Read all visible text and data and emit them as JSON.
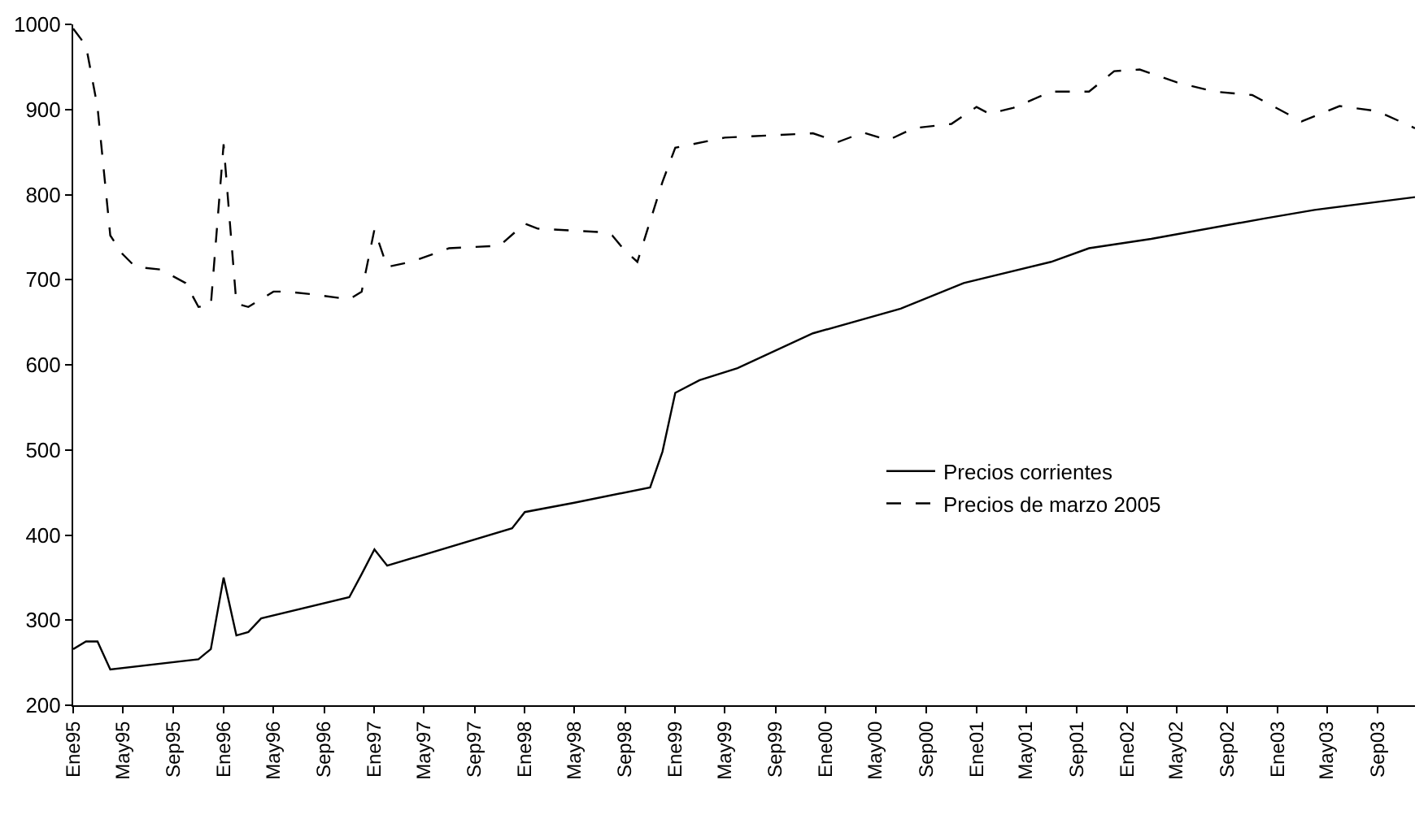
{
  "chart_data": {
    "type": "line",
    "xlim": [
      "1995-01",
      "2003-12"
    ],
    "ylim": [
      200,
      1000
    ],
    "yticks": [
      200,
      300,
      400,
      500,
      600,
      700,
      800,
      900,
      1000
    ],
    "xticks": [
      {
        "value": "1995-01",
        "label": "Ene95"
      },
      {
        "value": "1995-05",
        "label": "May95"
      },
      {
        "value": "1995-09",
        "label": "Sep95"
      },
      {
        "value": "1996-01",
        "label": "Ene96"
      },
      {
        "value": "1996-05",
        "label": "May96"
      },
      {
        "value": "1996-09",
        "label": "Sep96"
      },
      {
        "value": "1997-01",
        "label": "Ene97"
      },
      {
        "value": "1997-05",
        "label": "May97"
      },
      {
        "value": "1997-09",
        "label": "Sep97"
      },
      {
        "value": "1998-01",
        "label": "Ene98"
      },
      {
        "value": "1998-05",
        "label": "May98"
      },
      {
        "value": "1998-09",
        "label": "Sep98"
      },
      {
        "value": "1999-01",
        "label": "Ene99"
      },
      {
        "value": "1999-05",
        "label": "May99"
      },
      {
        "value": "1999-09",
        "label": "Sep99"
      },
      {
        "value": "2000-01",
        "label": "Ene00"
      },
      {
        "value": "2000-05",
        "label": "May00"
      },
      {
        "value": "2000-09",
        "label": "Sep00"
      },
      {
        "value": "2001-01",
        "label": "Ene01"
      },
      {
        "value": "2001-05",
        "label": "May01"
      },
      {
        "value": "2001-09",
        "label": "Sep01"
      },
      {
        "value": "2002-01",
        "label": "Ene02"
      },
      {
        "value": "2002-05",
        "label": "May02"
      },
      {
        "value": "2002-09",
        "label": "Sep02"
      },
      {
        "value": "2003-01",
        "label": "Ene03"
      },
      {
        "value": "2003-05",
        "label": "May03"
      },
      {
        "value": "2003-09",
        "label": "Sep03"
      }
    ],
    "legend": "right",
    "marker": "none",
    "series": [
      {
        "name": "Precios corrientes",
        "color": "#000000",
        "line_style": "solid",
        "x": [
          "1995-01",
          "1995-02",
          "1995-03",
          "1995-04",
          "1995-11",
          "1995-12",
          "1996-01",
          "1996-02",
          "1996-03",
          "1996-04",
          "1996-11",
          "1996-12",
          "1997-01",
          "1997-02",
          "1997-12",
          "1998-01",
          "1998-05",
          "1998-11",
          "1998-12",
          "1999-01",
          "1999-03",
          "1999-06",
          "1999-12",
          "2000-07",
          "2000-12",
          "2001-07",
          "2001-10",
          "2002-03",
          "2002-12",
          "2003-04",
          "2003-12"
        ],
        "values": [
          266,
          275,
          275,
          242,
          254,
          266,
          350,
          282,
          286,
          302,
          327,
          354,
          383,
          364,
          408,
          427,
          438,
          456,
          498,
          567,
          582,
          596,
          637,
          666,
          696,
          721,
          737,
          748,
          772,
          782,
          797
        ]
      },
      {
        "name": "Precios de marzo 2005",
        "color": "#000000",
        "line_style": "dashed",
        "x": [
          "1995-01",
          "1995-02",
          "1995-03",
          "1995-04",
          "1995-05",
          "1995-06",
          "1995-08",
          "1995-10",
          "1995-11",
          "1995-12",
          "1996-01",
          "1996-02",
          "1996-03",
          "1996-05",
          "1996-06",
          "1996-08",
          "1996-11",
          "1996-12",
          "1997-01",
          "1997-02",
          "1997-04",
          "1997-07",
          "1997-11",
          "1998-01",
          "1998-02",
          "1998-07",
          "1998-08",
          "1998-09",
          "1998-10",
          "1998-12",
          "1999-01",
          "1999-05",
          "1999-12",
          "2000-02",
          "2000-04",
          "2000-06",
          "2000-08",
          "2000-11",
          "2001-01",
          "2001-02",
          "2001-04",
          "2001-07",
          "2001-10",
          "2001-12",
          "2002-02",
          "2002-05",
          "2002-08",
          "2002-11",
          "2003-03",
          "2003-06",
          "2003-09",
          "2003-12"
        ],
        "values": [
          995,
          975,
          903,
          752,
          730,
          715,
          712,
          696,
          668,
          670,
          859,
          672,
          668,
          686,
          686,
          683,
          677,
          686,
          759,
          715,
          721,
          737,
          740,
          766,
          760,
          756,
          752,
          734,
          721,
          815,
          855,
          867,
          872,
          862,
          873,
          864,
          878,
          883,
          903,
          895,
          902,
          921,
          921,
          945,
          947,
          932,
          921,
          917,
          886,
          904,
          898,
          878
        ]
      }
    ]
  }
}
